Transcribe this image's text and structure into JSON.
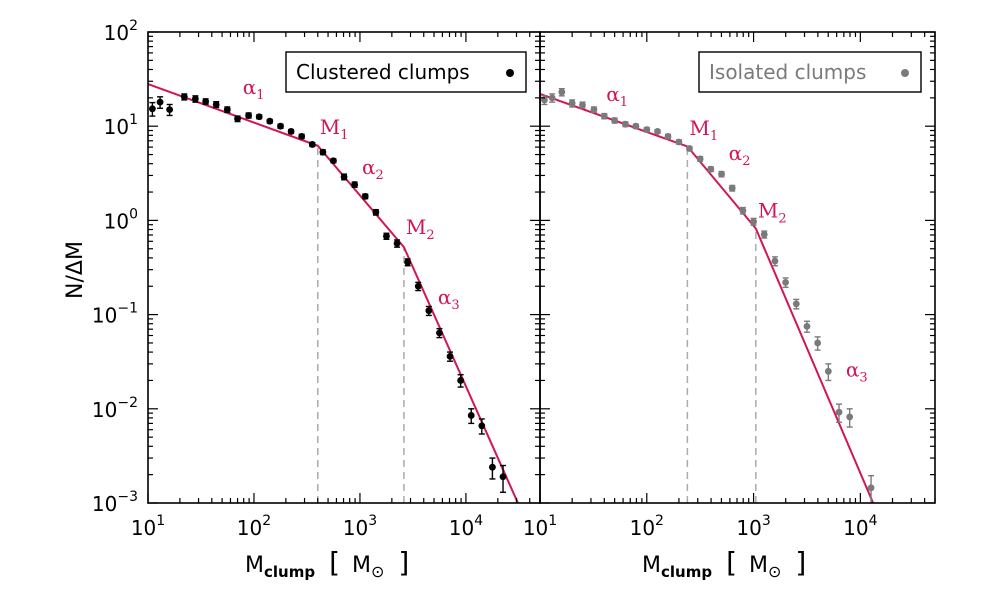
{
  "figure": {
    "ylabel": "N/ΔM",
    "xlabel_main": "M",
    "xlabel_sub": "clump",
    "xlabel_unit_open": "[",
    "xlabel_unit": "M",
    "xlabel_unit_symbol": "⊙",
    "xlabel_unit_close": "]",
    "fit_color": "#d4145a",
    "vline_color": "#aaaaaa"
  },
  "chart_data": [
    {
      "type": "scatter",
      "name": "left",
      "legend": {
        "label": "Clustered clumps",
        "position": "top-right"
      },
      "marker_color": "#000000",
      "xscale": "log",
      "yscale": "log",
      "xlim": [
        10,
        50000
      ],
      "ylim": [
        0.001,
        100
      ],
      "xticks": [
        {
          "base": "10",
          "exp": "1",
          "v": 10
        },
        {
          "base": "10",
          "exp": "2",
          "v": 100
        },
        {
          "base": "10",
          "exp": "3",
          "v": 1000
        },
        {
          "base": "10",
          "exp": "4",
          "v": 10000
        }
      ],
      "yticks": [
        {
          "base": "10",
          "exp": "−3",
          "v": 0.001
        },
        {
          "base": "10",
          "exp": "−2",
          "v": 0.01
        },
        {
          "base": "10",
          "exp": "−1",
          "v": 0.1
        },
        {
          "base": "10",
          "exp": "0",
          "v": 1
        },
        {
          "base": "10",
          "exp": "1",
          "v": 10
        },
        {
          "base": "10",
          "exp": "2",
          "v": 100
        }
      ],
      "points": [
        {
          "x": 11,
          "y": 15.3,
          "err": 2.5
        },
        {
          "x": 13,
          "y": 18.0,
          "err": 2.5
        },
        {
          "x": 16,
          "y": 15.0,
          "err": 2.0
        },
        {
          "x": 22,
          "y": 20.5,
          "err": 1.5
        },
        {
          "x": 28,
          "y": 19.5,
          "err": 1.5
        },
        {
          "x": 35,
          "y": 18.3,
          "err": 1.2
        },
        {
          "x": 44,
          "y": 17.0,
          "err": 1.2
        },
        {
          "x": 56,
          "y": 15.0,
          "err": 1.0
        },
        {
          "x": 70,
          "y": 12.0,
          "err": 0.8
        },
        {
          "x": 89,
          "y": 13.0,
          "err": 0.8
        },
        {
          "x": 112,
          "y": 12.6,
          "err": 0.6
        },
        {
          "x": 141,
          "y": 11.3,
          "err": 0.5
        },
        {
          "x": 178,
          "y": 10.0,
          "err": 0.5
        },
        {
          "x": 224,
          "y": 8.8,
          "err": 0.4
        },
        {
          "x": 282,
          "y": 7.8,
          "err": 0.4
        },
        {
          "x": 355,
          "y": 6.4,
          "err": 0.3
        },
        {
          "x": 447,
          "y": 5.3,
          "err": 0.3
        },
        {
          "x": 562,
          "y": 4.3,
          "err": 0.2
        },
        {
          "x": 708,
          "y": 2.9,
          "err": 0.2
        },
        {
          "x": 891,
          "y": 2.4,
          "err": 0.15
        },
        {
          "x": 1122,
          "y": 1.8,
          "err": 0.1
        },
        {
          "x": 1413,
          "y": 1.22,
          "err": 0.08
        },
        {
          "x": 1778,
          "y": 0.68,
          "err": 0.05
        },
        {
          "x": 2239,
          "y": 0.57,
          "err": 0.05
        },
        {
          "x": 2818,
          "y": 0.36,
          "err": 0.03
        },
        {
          "x": 3548,
          "y": 0.2,
          "err": 0.02
        },
        {
          "x": 4467,
          "y": 0.11,
          "err": 0.012
        },
        {
          "x": 5623,
          "y": 0.064,
          "err": 0.007
        },
        {
          "x": 7079,
          "y": 0.036,
          "err": 0.004
        },
        {
          "x": 8913,
          "y": 0.02,
          "err": 0.003
        },
        {
          "x": 11220,
          "y": 0.0085,
          "err": 0.0015
        },
        {
          "x": 14125,
          "y": 0.0066,
          "err": 0.0012
        },
        {
          "x": 17783,
          "y": 0.0024,
          "err": 0.0006
        },
        {
          "x": 22387,
          "y": 0.0019,
          "err": 0.0006
        }
      ],
      "fit": [
        {
          "x": 10,
          "y": 28
        },
        {
          "x": 400,
          "y": 6.2
        },
        {
          "x": 2600,
          "y": 0.52
        },
        {
          "x": 33000,
          "y": 0.00085
        }
      ],
      "vlines": [
        400,
        2600
      ],
      "annotations": [
        {
          "text": "α",
          "sub": "1",
          "x": 75,
          "y": 22
        },
        {
          "text": "M",
          "sub": "1",
          "x": 400,
          "y": 8.3
        },
        {
          "text": "α",
          "sub": "2",
          "x": 1000,
          "y": 3.1
        },
        {
          "text": "M",
          "sub": "2",
          "x": 2600,
          "y": 0.72
        },
        {
          "text": "α",
          "sub": "3",
          "x": 5200,
          "y": 0.13
        }
      ]
    },
    {
      "type": "scatter",
      "name": "right",
      "legend": {
        "label": "Isolated clumps",
        "position": "top-right"
      },
      "marker_color": "#7a7a7a",
      "xscale": "log",
      "yscale": "log",
      "xlim": [
        10,
        50000
      ],
      "ylim": [
        0.001,
        100
      ],
      "xticks": [
        {
          "base": "10",
          "exp": "1",
          "v": 10
        },
        {
          "base": "10",
          "exp": "2",
          "v": 100
        },
        {
          "base": "10",
          "exp": "3",
          "v": 1000
        },
        {
          "base": "10",
          "exp": "4",
          "v": 10000
        }
      ],
      "yticks": [
        {
          "v": 0.001
        },
        {
          "v": 0.01
        },
        {
          "v": 0.1
        },
        {
          "v": 1
        },
        {
          "v": 10
        },
        {
          "v": 100
        }
      ],
      "points": [
        {
          "x": 11,
          "y": 19.0,
          "err": 2.0
        },
        {
          "x": 13,
          "y": 20.0,
          "err": 2.0
        },
        {
          "x": 16,
          "y": 23.0,
          "err": 2.0
        },
        {
          "x": 20,
          "y": 17.5,
          "err": 1.5
        },
        {
          "x": 25,
          "y": 16.8,
          "err": 1.2
        },
        {
          "x": 32,
          "y": 15.0,
          "err": 1.0
        },
        {
          "x": 40,
          "y": 12.8,
          "err": 0.8
        },
        {
          "x": 50,
          "y": 11.5,
          "err": 0.7
        },
        {
          "x": 63,
          "y": 10.5,
          "err": 0.6
        },
        {
          "x": 79,
          "y": 10.0,
          "err": 0.5
        },
        {
          "x": 100,
          "y": 9.2,
          "err": 0.5
        },
        {
          "x": 126,
          "y": 8.8,
          "err": 0.4
        },
        {
          "x": 158,
          "y": 7.8,
          "err": 0.4
        },
        {
          "x": 200,
          "y": 6.8,
          "err": 0.35
        },
        {
          "x": 251,
          "y": 5.8,
          "err": 0.3
        },
        {
          "x": 316,
          "y": 4.5,
          "err": 0.25
        },
        {
          "x": 398,
          "y": 3.5,
          "err": 0.2
        },
        {
          "x": 501,
          "y": 3.1,
          "err": 0.2
        },
        {
          "x": 631,
          "y": 2.2,
          "err": 0.15
        },
        {
          "x": 794,
          "y": 1.27,
          "err": 0.1
        },
        {
          "x": 1000,
          "y": 0.97,
          "err": 0.08
        },
        {
          "x": 1259,
          "y": 0.71,
          "err": 0.06
        },
        {
          "x": 1585,
          "y": 0.37,
          "err": 0.04
        },
        {
          "x": 1995,
          "y": 0.22,
          "err": 0.025
        },
        {
          "x": 2512,
          "y": 0.13,
          "err": 0.015
        },
        {
          "x": 3162,
          "y": 0.075,
          "err": 0.01
        },
        {
          "x": 3981,
          "y": 0.05,
          "err": 0.008
        },
        {
          "x": 5012,
          "y": 0.025,
          "err": 0.005
        },
        {
          "x": 6310,
          "y": 0.0092,
          "err": 0.002
        },
        {
          "x": 7943,
          "y": 0.0082,
          "err": 0.0018
        },
        {
          "x": 12589,
          "y": 0.00145,
          "err": 0.0005
        }
      ],
      "fit": [
        {
          "x": 10,
          "y": 22
        },
        {
          "x": 240,
          "y": 6.1
        },
        {
          "x": 1050,
          "y": 0.82
        },
        {
          "x": 14000,
          "y": 0.00085
        }
      ],
      "vlines": [
        240,
        1050
      ],
      "annotations": [
        {
          "text": "α",
          "sub": "1",
          "x": 40,
          "y": 18.5
        },
        {
          "text": "M",
          "sub": "1",
          "x": 240,
          "y": 8.1
        },
        {
          "text": "α",
          "sub": "2",
          "x": 560,
          "y": 4.4
        },
        {
          "text": "M",
          "sub": "2",
          "x": 1050,
          "y": 1.07
        },
        {
          "text": "α",
          "sub": "3",
          "x": 7000,
          "y": 0.022
        }
      ]
    }
  ]
}
